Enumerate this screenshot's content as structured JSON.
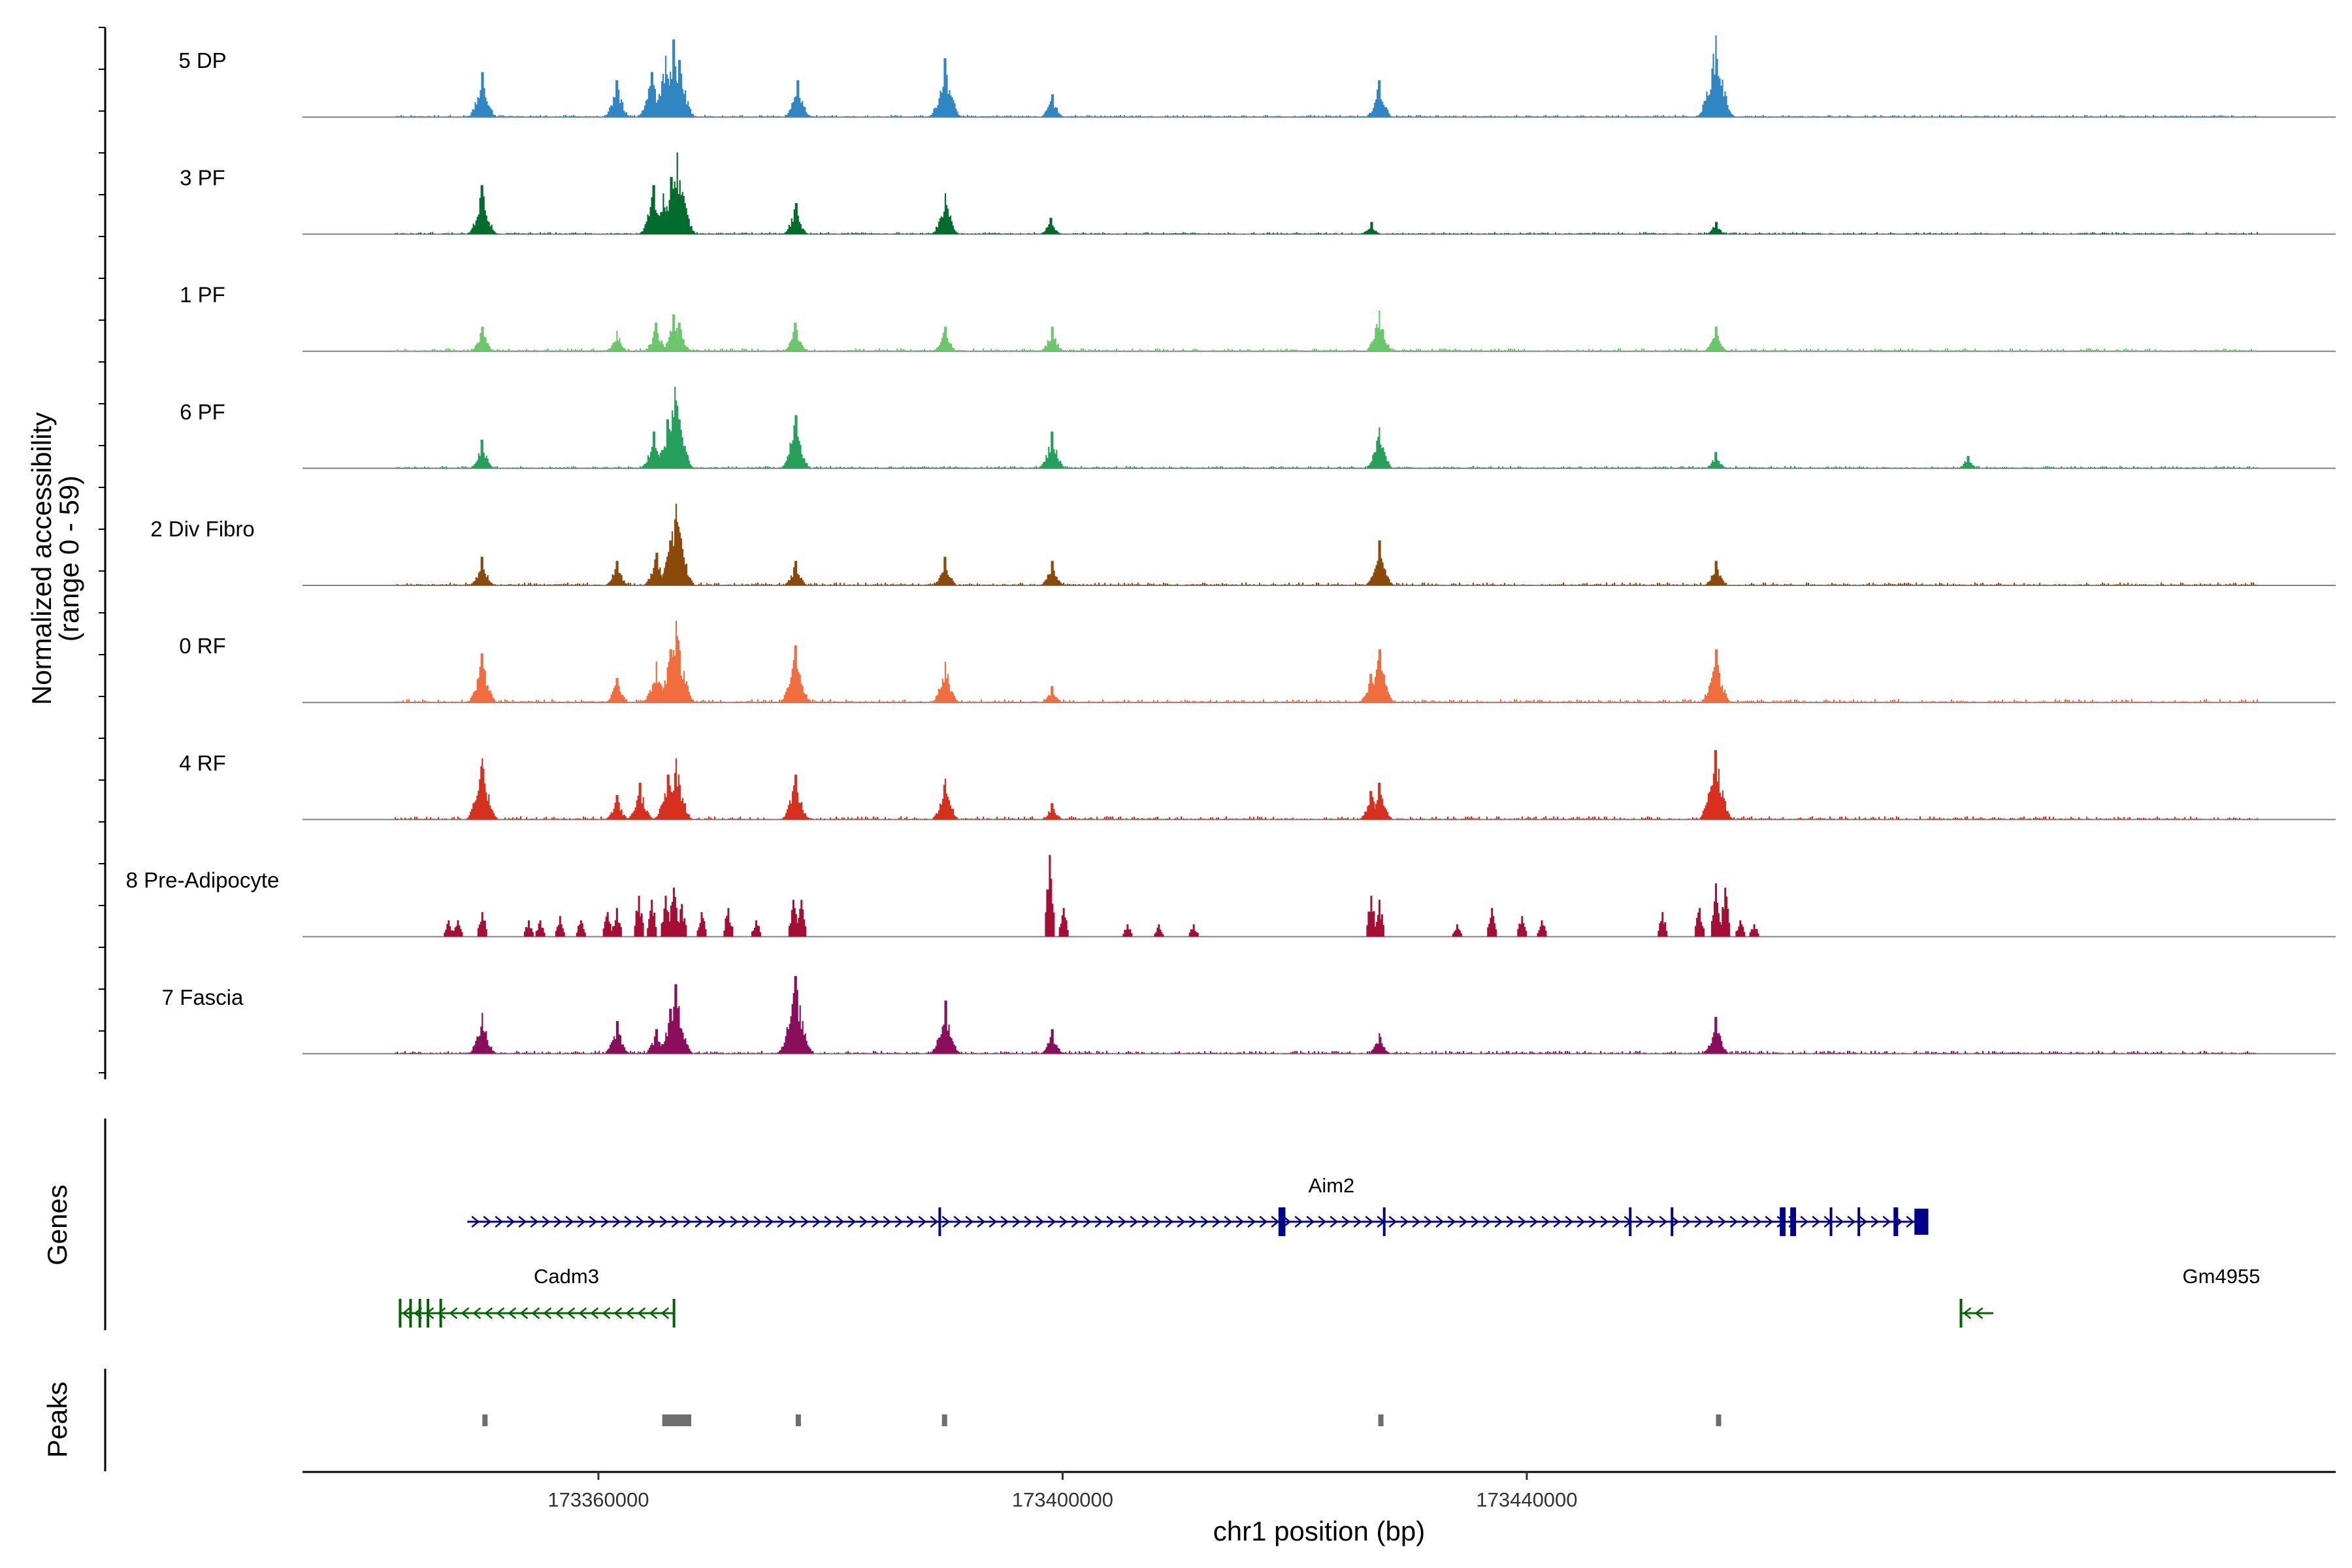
{
  "chart_data": {
    "type": "coverage-track",
    "ylabel_line1": "Normalized accessibility",
    "ylabel_line2": "(range 0 - 59)",
    "y_range": [
      0,
      59
    ],
    "xlabel": "chr1 position (bp)",
    "x_range": [
      173334500,
      173509700
    ],
    "x_ticks": [
      {
        "value": 173360000,
        "label": "173360000"
      },
      {
        "value": 173400000,
        "label": "173400000"
      },
      {
        "value": 173440000,
        "label": "173440000"
      }
    ],
    "region_start": 173342500,
    "region_end": 173503000,
    "tracks": [
      {
        "name": "5 DP",
        "color": "#2f86c3",
        "base": 0.7,
        "sparse": false,
        "peaks": [
          [
            173350000,
            0.55
          ],
          [
            173361600,
            0.45
          ],
          [
            173364600,
            0.55
          ],
          [
            173365800,
            0.75
          ],
          [
            173366500,
            0.95
          ],
          [
            173367000,
            0.7
          ],
          [
            173377200,
            0.45
          ],
          [
            173389900,
            0.72
          ],
          [
            173399100,
            0.28
          ],
          [
            173427300,
            0.45
          ],
          [
            173456300,
            1.0
          ]
        ]
      },
      {
        "name": "3 PF",
        "color": "#006d2c",
        "base": 0.6,
        "sparse": false,
        "peaks": [
          [
            173350000,
            0.6
          ],
          [
            173364800,
            0.6
          ],
          [
            173365600,
            0.5
          ],
          [
            173366300,
            0.7
          ],
          [
            173366800,
            1.0
          ],
          [
            173377000,
            0.38
          ],
          [
            173389900,
            0.5
          ],
          [
            173399000,
            0.2
          ],
          [
            173426600,
            0.15
          ],
          [
            173456300,
            0.15
          ]
        ]
      },
      {
        "name": "1 PF",
        "color": "#6ac86a",
        "base": 0.9,
        "sparse": false,
        "peaks": [
          [
            173350000,
            0.3
          ],
          [
            173361600,
            0.25
          ],
          [
            173365000,
            0.35
          ],
          [
            173366500,
            0.45
          ],
          [
            173367000,
            0.35
          ],
          [
            173377000,
            0.35
          ],
          [
            173389900,
            0.3
          ],
          [
            173399100,
            0.3
          ],
          [
            173427300,
            0.5
          ],
          [
            173456300,
            0.3
          ]
        ]
      },
      {
        "name": "6 PF",
        "color": "#24a05a",
        "base": 0.7,
        "sparse": false,
        "peaks": [
          [
            173350000,
            0.35
          ],
          [
            173364800,
            0.45
          ],
          [
            173366000,
            0.6
          ],
          [
            173366600,
            1.0
          ],
          [
            173367000,
            0.6
          ],
          [
            173377000,
            0.65
          ],
          [
            173399100,
            0.45
          ],
          [
            173427300,
            0.5
          ],
          [
            173456300,
            0.2
          ],
          [
            173478000,
            0.15
          ]
        ]
      },
      {
        "name": "2 Div Fibro",
        "color": "#8b4a0a",
        "base": 0.9,
        "sparse": false,
        "peaks": [
          [
            173350000,
            0.35
          ],
          [
            173361600,
            0.3
          ],
          [
            173365000,
            0.4
          ],
          [
            173366200,
            0.55
          ],
          [
            173366700,
            1.0
          ],
          [
            173377000,
            0.3
          ],
          [
            173389900,
            0.35
          ],
          [
            173399100,
            0.3
          ],
          [
            173427300,
            0.55
          ],
          [
            173456300,
            0.3
          ]
        ]
      },
      {
        "name": "0 RF",
        "color": "#f26d3d",
        "base": 1.0,
        "sparse": false,
        "peaks": [
          [
            173350000,
            0.6
          ],
          [
            173361600,
            0.3
          ],
          [
            173365000,
            0.5
          ],
          [
            173366200,
            0.65
          ],
          [
            173366700,
            1.0
          ],
          [
            173377000,
            0.7
          ],
          [
            173389900,
            0.5
          ],
          [
            173399100,
            0.2
          ],
          [
            173426600,
            0.35
          ],
          [
            173427300,
            0.65
          ],
          [
            173456300,
            0.65
          ]
        ]
      },
      {
        "name": "4 RF",
        "color": "#d7301f",
        "base": 1.0,
        "sparse": false,
        "peaks": [
          [
            173350000,
            0.75
          ],
          [
            173361600,
            0.3
          ],
          [
            173363600,
            0.45
          ],
          [
            173366000,
            0.55
          ],
          [
            173366700,
            0.75
          ],
          [
            173377000,
            0.55
          ],
          [
            173389900,
            0.5
          ],
          [
            173399100,
            0.2
          ],
          [
            173426600,
            0.35
          ],
          [
            173427300,
            0.45
          ],
          [
            173456300,
            0.85
          ]
        ]
      },
      {
        "name": "8 Pre-Adipocyte",
        "color": "#a50f36",
        "base": 0.0,
        "sparse": true,
        "peaks": [
          [
            173347100,
            0.2
          ],
          [
            173347900,
            0.2
          ],
          [
            173350000,
            0.3
          ],
          [
            173354000,
            0.2
          ],
          [
            173355000,
            0.2
          ],
          [
            173356700,
            0.25
          ],
          [
            173358500,
            0.2
          ],
          [
            173360800,
            0.3
          ],
          [
            173361600,
            0.35
          ],
          [
            173363500,
            0.5
          ],
          [
            173364600,
            0.45
          ],
          [
            173365800,
            0.5
          ],
          [
            173366500,
            0.6
          ],
          [
            173367200,
            0.4
          ],
          [
            173368900,
            0.3
          ],
          [
            173371200,
            0.35
          ],
          [
            173373600,
            0.2
          ],
          [
            173376800,
            0.45
          ],
          [
            173377500,
            0.45
          ],
          [
            173398900,
            1.0
          ],
          [
            173400100,
            0.35
          ],
          [
            173405600,
            0.15
          ],
          [
            173408300,
            0.15
          ],
          [
            173411300,
            0.15
          ],
          [
            173426600,
            0.5
          ],
          [
            173427300,
            0.45
          ],
          [
            173434000,
            0.15
          ],
          [
            173437000,
            0.35
          ],
          [
            173439600,
            0.25
          ],
          [
            173441300,
            0.2
          ],
          [
            173451700,
            0.3
          ],
          [
            173454900,
            0.35
          ],
          [
            173456300,
            0.65
          ],
          [
            173457100,
            0.6
          ],
          [
            173458400,
            0.2
          ],
          [
            173459600,
            0.15
          ]
        ]
      },
      {
        "name": "7 Fascia",
        "color": "#8a0e5b",
        "base": 0.9,
        "sparse": false,
        "peaks": [
          [
            173350000,
            0.5
          ],
          [
            173361600,
            0.4
          ],
          [
            173365000,
            0.3
          ],
          [
            173366200,
            0.55
          ],
          [
            173366700,
            0.85
          ],
          [
            173377000,
            0.95
          ],
          [
            173389900,
            0.65
          ],
          [
            173399100,
            0.3
          ],
          [
            173427300,
            0.25
          ],
          [
            173456300,
            0.45
          ]
        ]
      }
    ],
    "genes_label": "Genes",
    "genes": [
      {
        "name": "Aim2",
        "strand": "+",
        "start": 173348700,
        "end": 173474600,
        "color": "#00008b",
        "exons": [
          [
            173389300,
            173389500
          ],
          [
            173418600,
            173419200
          ],
          [
            173427600,
            173427800
          ],
          [
            173448800,
            173449000
          ],
          [
            173452400,
            173452600
          ],
          [
            173461800,
            173462300
          ],
          [
            173462700,
            173463200
          ],
          [
            173466100,
            173466300
          ],
          [
            173468500,
            173468700
          ],
          [
            173471600,
            173472000
          ],
          [
            173473400,
            173474600
          ]
        ]
      },
      {
        "name": "Cadm3",
        "strand": "-",
        "start": 173342800,
        "end": 173366600,
        "color": "#006400",
        "exons": [
          [
            173342800,
            173343000
          ],
          [
            173343700,
            173343900
          ],
          [
            173344500,
            173344700
          ],
          [
            173345200,
            173345400
          ],
          [
            173346300,
            173346500
          ],
          [
            173366400,
            173366600
          ]
        ]
      },
      {
        "name": "Gm4955",
        "strand": "-",
        "start": 173477300,
        "end": 173480200,
        "color": "#006400",
        "exons": [
          [
            173477300,
            173477500
          ]
        ]
      }
    ],
    "peaks_label": "Peaks",
    "peaks": [
      [
        173350000,
        173350400
      ],
      [
        173365500,
        173368000
      ],
      [
        173377000,
        173377400
      ],
      [
        173389600,
        173390000
      ],
      [
        173427200,
        173427600
      ],
      [
        173456300,
        173456700
      ]
    ]
  }
}
